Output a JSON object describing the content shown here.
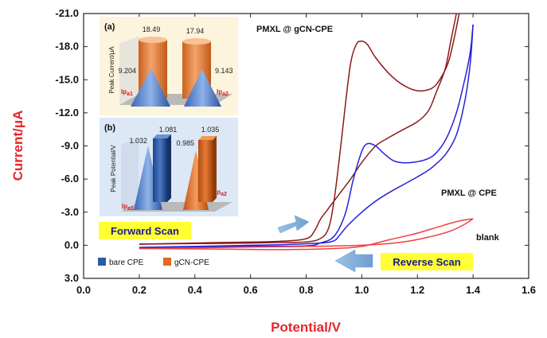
{
  "chart_data": {
    "type": "line",
    "title": "",
    "xlabel": "Potential/V",
    "ylabel": "Current/μA",
    "xlim": [
      0.0,
      1.6
    ],
    "ylim": [
      3.0,
      -21.0
    ],
    "x_ticks": [
      "0.0",
      "0.2",
      "0.4",
      "0.6",
      "0.8",
      "1.0",
      "1.2",
      "1.4",
      "1.6"
    ],
    "y_ticks": [
      "-21.0",
      "-18.0",
      "-15.0",
      "-12.0",
      "-9.0",
      "-6.0",
      "-3.0",
      "0.0",
      "3.0"
    ],
    "series": [
      {
        "name": "PMXL @ gCN-CPE",
        "color": "#8b1a1a",
        "forward": [
          [
            0.2,
            -0.1
          ],
          [
            0.4,
            -0.15
          ],
          [
            0.6,
            -0.2
          ],
          [
            0.7,
            -0.25
          ],
          [
            0.8,
            -0.3
          ],
          [
            0.85,
            -0.6
          ],
          [
            0.88,
            -1.5
          ],
          [
            0.9,
            -4.0
          ],
          [
            0.92,
            -8.0
          ],
          [
            0.94,
            -12.5
          ],
          [
            0.96,
            -16.5
          ],
          [
            0.98,
            -18.2
          ],
          [
            1.0,
            -18.5
          ],
          [
            1.02,
            -18.2
          ],
          [
            1.05,
            -17.0
          ],
          [
            1.1,
            -15.5
          ],
          [
            1.15,
            -14.5
          ],
          [
            1.2,
            -14.0
          ],
          [
            1.25,
            -14.2
          ],
          [
            1.28,
            -15.0
          ],
          [
            1.31,
            -16.5
          ],
          [
            1.33,
            -18.5
          ],
          [
            1.35,
            -21.0
          ]
        ],
        "reverse": [
          [
            1.34,
            -21.0
          ],
          [
            1.32,
            -18.5
          ],
          [
            1.3,
            -16.0
          ],
          [
            1.27,
            -14.0
          ],
          [
            1.24,
            -12.2
          ],
          [
            1.2,
            -11.2
          ],
          [
            1.15,
            -10.5
          ],
          [
            1.1,
            -9.8
          ],
          [
            1.05,
            -9.0
          ],
          [
            1.0,
            -7.5
          ],
          [
            0.96,
            -6.0
          ],
          [
            0.93,
            -5.0
          ],
          [
            0.9,
            -4.0
          ],
          [
            0.87,
            -3.0
          ],
          [
            0.85,
            -2.3
          ],
          [
            0.83,
            -1.3
          ],
          [
            0.8,
            -0.6
          ],
          [
            0.7,
            -0.35
          ],
          [
            0.5,
            -0.25
          ],
          [
            0.2,
            -0.1
          ]
        ]
      },
      {
        "name": "PMXL @ CPE",
        "color": "#2222dd",
        "forward": [
          [
            0.2,
            0.2
          ],
          [
            0.4,
            0.15
          ],
          [
            0.6,
            0.1
          ],
          [
            0.8,
            0.05
          ],
          [
            0.85,
            -0.2
          ],
          [
            0.9,
            -0.8
          ],
          [
            0.94,
            -2.8
          ],
          [
            0.97,
            -6.0
          ],
          [
            1.0,
            -8.5
          ],
          [
            1.02,
            -9.2
          ],
          [
            1.05,
            -9.0
          ],
          [
            1.08,
            -8.3
          ],
          [
            1.12,
            -7.6
          ],
          [
            1.18,
            -7.5
          ],
          [
            1.25,
            -8.0
          ],
          [
            1.3,
            -9.5
          ],
          [
            1.34,
            -12.0
          ],
          [
            1.37,
            -15.0
          ],
          [
            1.39,
            -17.5
          ],
          [
            1.4,
            -20.0
          ]
        ],
        "reverse": [
          [
            1.4,
            -20.0
          ],
          [
            1.39,
            -16.5
          ],
          [
            1.37,
            -13.0
          ],
          [
            1.34,
            -10.0
          ],
          [
            1.3,
            -8.2
          ],
          [
            1.25,
            -7.0
          ],
          [
            1.2,
            -6.2
          ],
          [
            1.15,
            -5.5
          ],
          [
            1.1,
            -4.8
          ],
          [
            1.05,
            -4.0
          ],
          [
            1.0,
            -3.0
          ],
          [
            0.95,
            -1.8
          ],
          [
            0.92,
            -0.9
          ],
          [
            0.9,
            -0.4
          ],
          [
            0.85,
            -0.2
          ],
          [
            0.7,
            -0.05
          ],
          [
            0.5,
            0.05
          ],
          [
            0.2,
            0.2
          ]
        ]
      },
      {
        "name": "blank",
        "color": "#f04040",
        "forward": [
          [
            0.2,
            0.3
          ],
          [
            0.5,
            0.2
          ],
          [
            0.8,
            0.1
          ],
          [
            1.0,
            0.0
          ],
          [
            1.15,
            -0.3
          ],
          [
            1.25,
            -0.8
          ],
          [
            1.32,
            -1.3
          ],
          [
            1.37,
            -1.9
          ],
          [
            1.4,
            -2.4
          ]
        ],
        "reverse": [
          [
            1.4,
            -2.4
          ],
          [
            1.35,
            -2.2
          ],
          [
            1.28,
            -1.7
          ],
          [
            1.2,
            -1.1
          ],
          [
            1.1,
            -0.5
          ],
          [
            1.0,
            0.1
          ],
          [
            0.9,
            0.3
          ],
          [
            0.7,
            0.4
          ],
          [
            0.5,
            0.35
          ],
          [
            0.2,
            0.3
          ]
        ]
      }
    ],
    "annotations": {
      "curve_labels": [
        "PMXL @ gCN-CPE",
        "PMXL @ CPE",
        "blank"
      ],
      "forward_scan": "Forward Scan",
      "reverse_scan": "Reverse Scan"
    },
    "insets": [
      {
        "id": "(a)",
        "type": "bar",
        "ylabel": "Peak Current/μA",
        "categories": [
          "Ipa1",
          "Ipa2"
        ],
        "category_labels": [
          {
            "main": "Ip",
            "sub": "a1"
          },
          {
            "main": "Ip",
            "sub": "a2"
          }
        ],
        "series": [
          {
            "name": "bare CPE",
            "values": [
              9.204,
              9.143
            ],
            "labels": [
              "9.204",
              "9.143"
            ]
          },
          {
            "name": "gCN-CPE",
            "values": [
              18.49,
              17.94
            ],
            "labels": [
              "18.49",
              "17.94"
            ]
          }
        ]
      },
      {
        "id": "(b)",
        "type": "bar",
        "ylabel": "Peak Potential/V",
        "categories": [
          "Ipa1",
          "Ipa2"
        ],
        "category_labels": [
          {
            "main": "Ip",
            "sub": "a1"
          },
          {
            "main": "Ip",
            "sub": "a2"
          }
        ],
        "series": [
          {
            "name": "bare CPE",
            "values": [
              1.032,
              1.081
            ],
            "labels": [
              "1.032",
              "1.081"
            ]
          },
          {
            "name": "gCN-CPE",
            "values": [
              0.985,
              1.035
            ],
            "labels": [
              "0.985",
              "1.035"
            ]
          }
        ]
      }
    ],
    "legend": [
      {
        "name": "bare CPE",
        "color": "#2a5aa8"
      },
      {
        "name": "gCN-CPE",
        "color": "#e06a20"
      }
    ]
  }
}
